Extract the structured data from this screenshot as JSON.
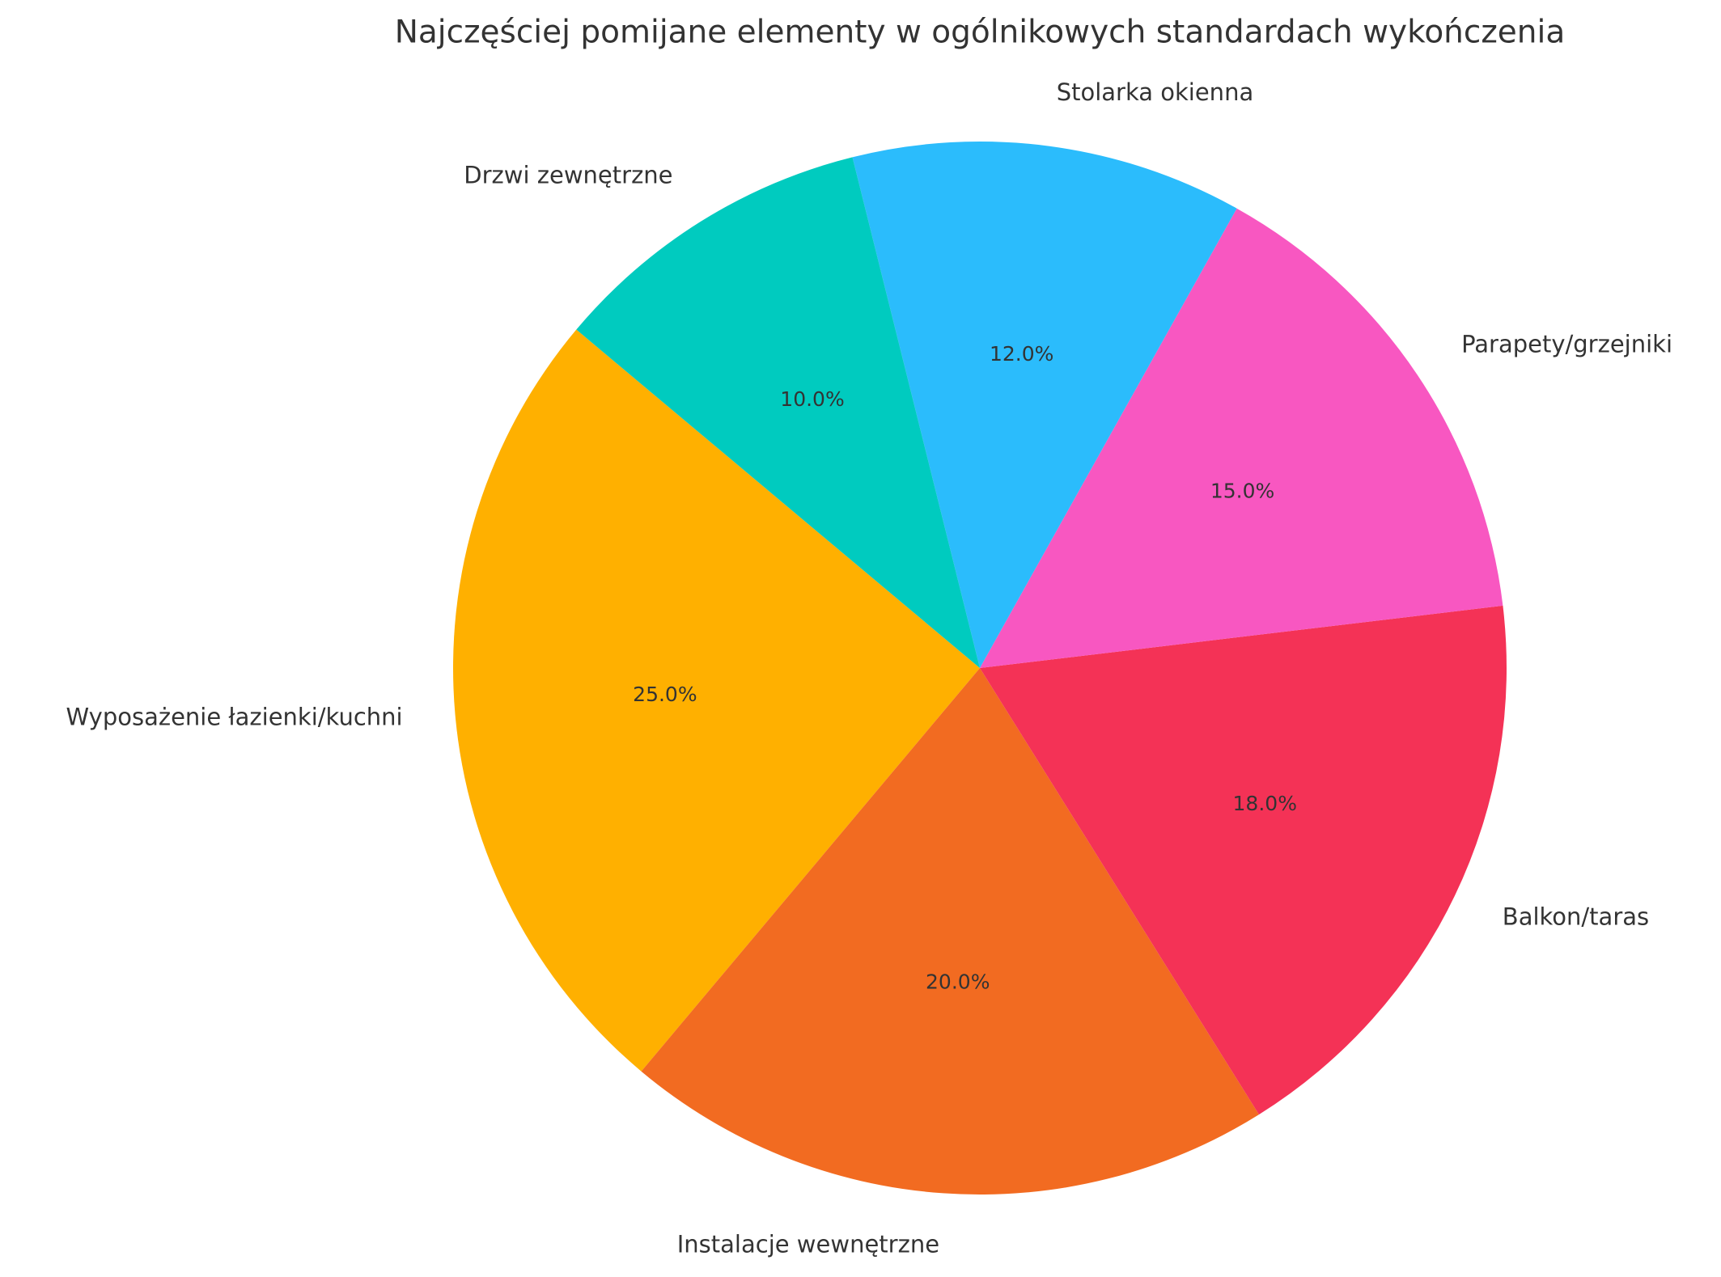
{
  "chart_data": {
    "type": "pie",
    "title": "Najczęściej pomijane elementy w ogólnikowych standardach wykończenia",
    "categories": [
      "Wyposażenie łazienki/kuchni",
      "Instalacje wewnętrzne",
      "Balkon/taras",
      "Parapety/grzejniki",
      "Stolarka okienna",
      "Drzwi zewnętrzne"
    ],
    "values": [
      25,
      20,
      18,
      15,
      12,
      10
    ],
    "value_labels": [
      "25.0%",
      "20.0%",
      "18.0%",
      "15.0%",
      "12.0%",
      "10.0%"
    ],
    "colors": [
      "#ffb000",
      "#f26b21",
      "#f43256",
      "#f857c1",
      "#2bbcfc",
      "#00cbbf"
    ],
    "startangle": 140
  }
}
